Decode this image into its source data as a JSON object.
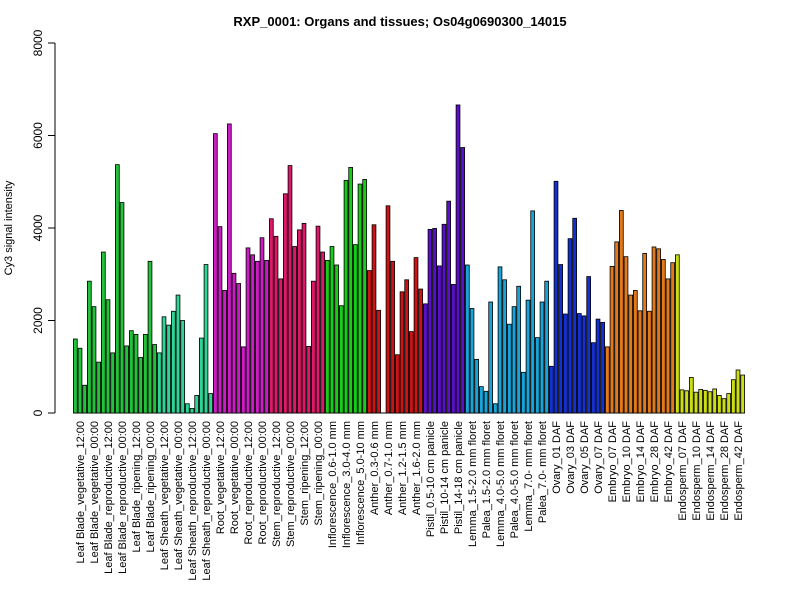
{
  "chart_data": {
    "type": "bar",
    "title": "RXP_0001: Organs and tissues; Os04g0690300_14015",
    "xlabel": "",
    "ylabel": "Cy3 signal intensity",
    "ylim": [
      0,
      8000
    ],
    "yticks": [
      0,
      2000,
      4000,
      6000,
      8000
    ],
    "grid": false,
    "group_labels": [
      "Leaf Blade_vegetative_12:00",
      "Leaf Blade_vegetative_00:00",
      "Leaf Blade_reproductive_12:00",
      "Leaf Blade_reproductive_00:00",
      "Leaf Blade_ripening_12:00",
      "Leaf Blade_ripening_00:00",
      "Leaf Sheath_vegetative_12:00",
      "Leaf Sheath_vegetative_00:00",
      "Leaf Sheath_reproductive_12:00",
      "Leaf Sheath_reproductive_00:00",
      "Root_vegetative_12:00",
      "Root_vegetative_00:00",
      "Root_reproductive_12:00",
      "Root_reproductive_00:00",
      "Stem_reproductive_12:00",
      "Stem_reproductive_00:00",
      "Stem_ripening_12:00",
      "Stem_ripening_00:00",
      "Inflorescence_0.6-1.0 mm",
      "Inflorescence_3.0-4.0 mm",
      "Inflorescence_5.0-10 mm",
      "Anther_0.3-0.6 mm",
      "Anther_0.7-1.0 mm",
      "Anther_1.2-1.5 mm",
      "Anther_1.6-2.0 mm",
      "Pistil_0.5-10 cm panicle",
      "Pistil_10-14 cm panicle",
      "Pistil_14-18 cm panicle",
      "Lemma_1.5-2.0 mm floret",
      "Palea_1.5-2.0 mm floret",
      "Lemma_4.0-5.0 mm floret",
      "Palea_4.0-5.0 mm floret",
      "Lemma_7.0- mm floret",
      "Palea_7.0- mm floret",
      "Ovary_01 DAF",
      "Ovary_03 DAF",
      "Ovary_05 DAF",
      "Ovary_07 DAF",
      "Embryo_07 DAF",
      "Embryo_10 DAF",
      "Embryo_14 DAF",
      "Embryo_28 DAF",
      "Embryo_42 DAF",
      "Endosperm_07 DAF",
      "Endosperm_10 DAF",
      "Endosperm_14 DAF",
      "Endosperm_28 DAF",
      "Endosperm_42 DAF"
    ],
    "tissue_groups": [
      {
        "color": "#22c33a",
        "groups": 6
      },
      {
        "color": "#2fd496",
        "groups": 4
      },
      {
        "color": "#cc1cc4",
        "groups": 4
      },
      {
        "color": "#e0186a",
        "groups": 4
      },
      {
        "color": "#18cc18",
        "groups": 3
      },
      {
        "color": "#cc1414",
        "groups": 4
      },
      {
        "color": "#5a10c8",
        "groups": 3
      },
      {
        "color": "#18a4d8",
        "groups": 6
      },
      {
        "color": "#1430d0",
        "groups": 4
      },
      {
        "color": "#e27a1c",
        "groups": 5
      },
      {
        "color": "#cede14",
        "groups": 5
      }
    ],
    "bars_per_group": 3,
    "values": [
      1600,
      1400,
      600,
      2850,
      2300,
      1100,
      3480,
      2450,
      1300,
      5370,
      4550,
      1450,
      1780,
      1700,
      1200,
      1700,
      3280,
      1480,
      1300,
      2080,
      1900,
      2200,
      2550,
      2000,
      200,
      100,
      380,
      1620,
      3210,
      420,
      6040,
      4030,
      2650,
      6250,
      3020,
      2800,
      1430,
      3570,
      3420,
      3280,
      3790,
      3300,
      4200,
      3820,
      2900,
      4740,
      5350,
      3600,
      3960,
      4100,
      1440,
      2850,
      4040,
      3480,
      3300,
      3600,
      3200,
      2320,
      5030,
      5310,
      3640,
      4950,
      5050,
      3080,
      4070,
      2220,
      0,
      4480,
      3280,
      1260,
      2620,
      2880,
      1760,
      3360,
      2680,
      2360,
      3970,
      3990,
      3180,
      4080,
      4580,
      2780,
      6660,
      5740,
      3200,
      2260,
      1160,
      570,
      470,
      2400,
      200,
      3160,
      2880,
      1920,
      2300,
      2740,
      880,
      2440,
      4370,
      1630,
      2400,
      2850,
      1010,
      5010,
      3210,
      2140,
      3770,
      4210,
      2150,
      2100,
      2950,
      1520,
      2030,
      1960,
      1430,
      3170,
      3700,
      4380,
      3380,
      2550,
      2650,
      2210,
      3450,
      2200,
      3590,
      3550,
      3320,
      2900,
      3250,
      3420,
      500,
      480,
      770,
      450,
      510,
      490,
      460,
      520,
      380,
      310,
      420,
      720,
      930,
      820
    ]
  }
}
